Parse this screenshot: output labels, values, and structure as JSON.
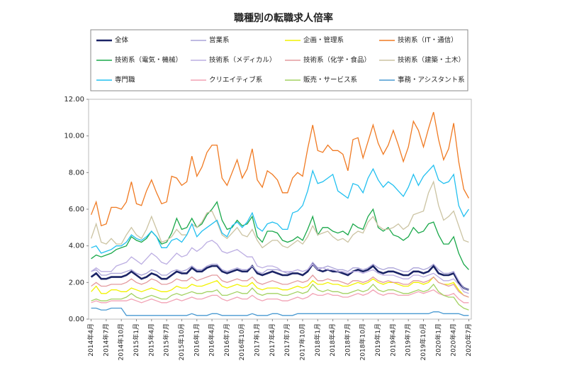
{
  "chart_data": {
    "type": "line",
    "title": "職種別の転職求人倍率",
    "categories": [
      "2014年4月",
      null,
      null,
      "2014年7月",
      null,
      null,
      "2014年10月",
      null,
      null,
      "2015年1月",
      null,
      null,
      "2015年4月",
      null,
      null,
      "2015年7月",
      null,
      null,
      "2015年10月",
      null,
      null,
      "2016年1月",
      null,
      null,
      "2016年4月",
      null,
      null,
      "2016年7月",
      null,
      null,
      "2016年10月",
      null,
      null,
      "2017年1月",
      null,
      null,
      "2017年4月",
      null,
      null,
      "2017年7月",
      null,
      null,
      "2017年10月",
      null,
      null,
      "2018年1月",
      null,
      null,
      "2018年4月",
      null,
      null,
      "2018年7月",
      null,
      null,
      "2018年10月",
      null,
      null,
      "2019年1月",
      null,
      null,
      "2019年4月",
      null,
      null,
      "2019年7月",
      null,
      null,
      "2019年10月",
      null,
      null,
      "2020年1月",
      null,
      null,
      "2020年4月",
      null,
      null,
      "2020年7月"
    ],
    "ylim": [
      0,
      12
    ],
    "yticks": [
      {
        "value": 0,
        "label": "0.00"
      },
      {
        "value": 2,
        "label": "2.00"
      },
      {
        "value": 4,
        "label": "4.00"
      },
      {
        "value": 6,
        "label": "6.00"
      },
      {
        "value": 8,
        "label": "8.00"
      },
      {
        "value": 10,
        "label": "10.00"
      },
      {
        "value": 12,
        "label": "12.00"
      }
    ],
    "series": [
      {
        "name": "全体",
        "color": "#1b2466",
        "values": [
          2.3,
          2.5,
          2.2,
          2.2,
          2.3,
          2.3,
          2.3,
          2.4,
          2.6,
          2.4,
          2.2,
          2.3,
          2.5,
          2.4,
          2.2,
          2.2,
          2.4,
          2.6,
          2.5,
          2.5,
          2.8,
          2.6,
          2.6,
          2.8,
          2.9,
          2.9,
          2.6,
          2.5,
          2.6,
          2.7,
          2.6,
          2.6,
          2.9,
          2.5,
          2.4,
          2.5,
          2.6,
          2.5,
          2.4,
          2.4,
          2.5,
          2.5,
          2.4,
          2.6,
          3.0,
          2.7,
          2.6,
          2.7,
          2.6,
          2.6,
          2.5,
          2.4,
          2.6,
          2.7,
          2.6,
          2.7,
          2.9,
          2.6,
          2.5,
          2.6,
          2.6,
          2.5,
          2.4,
          2.4,
          2.6,
          2.6,
          2.5,
          2.6,
          2.9,
          2.5,
          2.4,
          2.4,
          2.5,
          2.0,
          1.7,
          1.6
        ]
      },
      {
        "name": "営業系",
        "color": "#aaa3d8",
        "values": [
          2.6,
          2.7,
          2.4,
          2.4,
          2.5,
          2.5,
          2.5,
          2.6,
          2.7,
          2.5,
          2.4,
          2.5,
          2.7,
          2.6,
          2.4,
          2.4,
          2.6,
          2.7,
          2.6,
          2.7,
          2.9,
          2.7,
          2.7,
          2.9,
          3.0,
          3.0,
          2.7,
          2.6,
          2.7,
          2.8,
          2.7,
          2.7,
          2.9,
          2.6,
          2.5,
          2.7,
          2.7,
          2.7,
          2.6,
          2.5,
          2.6,
          2.7,
          2.6,
          2.7,
          3.1,
          2.8,
          2.8,
          2.9,
          2.8,
          2.7,
          2.7,
          2.6,
          2.8,
          2.8,
          2.7,
          2.8,
          3.0,
          2.8,
          2.7,
          2.8,
          2.8,
          2.7,
          2.6,
          2.6,
          2.8,
          2.8,
          2.7,
          2.8,
          3.0,
          2.7,
          2.5,
          2.5,
          2.6,
          2.1,
          1.7,
          1.6
        ]
      },
      {
        "name": "企画・管理系",
        "color": "#f2f200",
        "values": [
          1.5,
          1.8,
          1.4,
          1.4,
          1.6,
          1.6,
          1.5,
          1.5,
          1.7,
          1.6,
          1.5,
          1.6,
          1.7,
          1.6,
          1.5,
          1.5,
          1.6,
          1.8,
          1.7,
          1.7,
          1.9,
          1.8,
          1.8,
          1.9,
          2.0,
          2.1,
          1.8,
          1.7,
          1.8,
          1.9,
          1.8,
          1.8,
          2.0,
          1.7,
          1.6,
          1.7,
          1.7,
          1.7,
          1.6,
          1.6,
          1.7,
          1.8,
          1.7,
          1.8,
          2.1,
          1.9,
          1.9,
          2.0,
          1.9,
          1.9,
          1.8,
          1.8,
          1.9,
          2.0,
          1.9,
          2.0,
          2.2,
          2.0,
          1.9,
          2.0,
          2.0,
          1.9,
          1.8,
          1.8,
          2.0,
          2.0,
          1.9,
          2.0,
          2.3,
          2.0,
          1.9,
          1.9,
          2.0,
          1.6,
          1.3,
          1.2
        ]
      },
      {
        "name": "技術系（IT・通信）",
        "color": "#f07a22",
        "values": [
          5.7,
          6.4,
          5.1,
          5.2,
          6.1,
          6.1,
          6.0,
          6.4,
          7.5,
          6.3,
          6.2,
          7.0,
          7.6,
          6.9,
          6.3,
          6.4,
          7.8,
          7.7,
          7.3,
          7.5,
          8.9,
          7.8,
          8.3,
          9.1,
          9.5,
          9.5,
          7.7,
          7.3,
          8.0,
          8.7,
          7.7,
          8.2,
          9.3,
          7.6,
          7.2,
          8.1,
          7.9,
          7.6,
          6.9,
          6.9,
          7.7,
          8.0,
          7.8,
          9.3,
          10.6,
          9.2,
          9.1,
          9.5,
          9.2,
          9.2,
          9.0,
          8.1,
          9.8,
          9.9,
          8.8,
          9.7,
          10.6,
          9.6,
          9.0,
          9.5,
          10.3,
          9.5,
          8.6,
          9.4,
          10.8,
          10.3,
          9.4,
          10.4,
          11.3,
          9.8,
          8.7,
          9.3,
          10.7,
          8.6,
          7.1,
          6.6
        ]
      },
      {
        "name": "技術系（電気・機械）",
        "color": "#1aa84a",
        "values": [
          3.3,
          3.5,
          3.4,
          3.5,
          3.6,
          3.8,
          3.9,
          4.0,
          4.5,
          4.3,
          4.2,
          4.4,
          4.8,
          4.5,
          4.1,
          4.2,
          4.7,
          5.5,
          4.9,
          5.0,
          5.5,
          5.0,
          5.2,
          5.7,
          6.0,
          6.4,
          5.4,
          4.9,
          5.0,
          5.4,
          5.1,
          5.2,
          5.6,
          4.5,
          4.2,
          4.8,
          4.8,
          4.7,
          4.3,
          4.2,
          4.3,
          4.5,
          4.3,
          4.9,
          5.6,
          4.6,
          5.0,
          5.0,
          4.8,
          4.7,
          4.8,
          4.6,
          5.2,
          5.0,
          4.9,
          5.6,
          6.0,
          5.0,
          4.8,
          5.0,
          4.6,
          4.5,
          4.3,
          4.5,
          5.0,
          4.7,
          4.8,
          5.2,
          5.3,
          4.6,
          4.1,
          4.1,
          4.5,
          3.6,
          3.0,
          2.7
        ]
      },
      {
        "name": "技術系（メディカル）",
        "color": "#bcaee2",
        "values": [
          2.6,
          2.8,
          2.6,
          2.6,
          2.6,
          2.9,
          3.0,
          3.1,
          3.4,
          3.2,
          3.0,
          3.3,
          3.6,
          3.4,
          3.1,
          3.0,
          3.3,
          3.6,
          3.4,
          3.5,
          3.9,
          3.7,
          3.9,
          4.2,
          4.3,
          4.1,
          3.7,
          3.6,
          3.7,
          3.8,
          3.6,
          3.4,
          3.4,
          2.9,
          2.8,
          2.9,
          2.9,
          2.8,
          2.6,
          2.6,
          2.6,
          2.7,
          2.6,
          2.7,
          3.0,
          2.7,
          2.8,
          2.7,
          2.7,
          2.6,
          2.6,
          2.5,
          2.6,
          2.6,
          2.5,
          2.6,
          2.7,
          2.5,
          2.4,
          2.4,
          2.4,
          2.3,
          2.2,
          2.2,
          2.4,
          2.4,
          2.3,
          2.4,
          2.5,
          2.3,
          2.1,
          2.1,
          2.2,
          1.9,
          1.5,
          1.4
        ]
      },
      {
        "name": "技術系（化学・食品）",
        "color": "#e39a9e",
        "values": [
          1.8,
          2.0,
          1.8,
          1.8,
          1.9,
          1.9,
          1.9,
          2.0,
          2.2,
          2.0,
          1.9,
          2.0,
          2.2,
          2.1,
          1.9,
          1.9,
          2.0,
          2.2,
          2.1,
          2.1,
          2.3,
          2.1,
          2.2,
          2.3,
          2.4,
          2.4,
          2.1,
          2.0,
          2.1,
          2.2,
          2.1,
          2.1,
          2.3,
          2.0,
          1.9,
          2.0,
          2.1,
          2.0,
          1.9,
          1.9,
          2.0,
          2.1,
          2.0,
          2.1,
          2.4,
          2.1,
          2.1,
          2.2,
          2.1,
          2.1,
          2.0,
          1.9,
          2.1,
          2.1,
          2.0,
          2.1,
          2.3,
          2.1,
          2.0,
          2.1,
          2.0,
          2.0,
          1.9,
          1.9,
          2.1,
          2.1,
          2.0,
          2.1,
          2.3,
          2.0,
          1.9,
          1.8,
          1.9,
          1.5,
          1.3,
          1.2
        ]
      },
      {
        "name": "技術系（建築・土木）",
        "color": "#cbc3a2",
        "values": [
          4.4,
          5.2,
          4.2,
          4.1,
          4.4,
          4.1,
          4.1,
          4.6,
          5.0,
          4.6,
          4.4,
          4.9,
          5.6,
          4.9,
          4.2,
          4.3,
          4.5,
          4.9,
          4.6,
          4.6,
          5.2,
          5.0,
          5.3,
          5.8,
          5.9,
          5.3,
          4.6,
          4.4,
          4.7,
          5.0,
          4.6,
          4.5,
          4.9,
          4.3,
          3.9,
          4.1,
          4.3,
          4.3,
          4.0,
          3.9,
          4.1,
          4.3,
          4.1,
          4.5,
          5.1,
          4.6,
          4.7,
          4.8,
          4.5,
          4.3,
          4.4,
          4.2,
          4.6,
          4.8,
          4.7,
          5.3,
          5.6,
          5.1,
          4.9,
          4.9,
          5.0,
          5.2,
          4.9,
          5.1,
          5.7,
          5.8,
          5.9,
          6.9,
          7.5,
          6.2,
          5.4,
          5.6,
          5.9,
          5.1,
          4.3,
          4.2
        ]
      },
      {
        "name": "専門職",
        "color": "#22c0f0",
        "values": [
          3.9,
          4.0,
          3.6,
          3.7,
          3.8,
          4.0,
          4.0,
          4.2,
          4.6,
          4.4,
          4.3,
          4.5,
          4.8,
          4.5,
          3.9,
          3.9,
          4.3,
          4.4,
          4.2,
          4.6,
          5.2,
          4.5,
          4.8,
          5.0,
          5.2,
          5.4,
          4.7,
          4.5,
          5.1,
          5.3,
          5.0,
          5.3,
          5.8,
          5.0,
          4.8,
          5.2,
          5.3,
          5.2,
          4.9,
          4.9,
          5.8,
          5.9,
          6.2,
          7.0,
          8.1,
          7.4,
          7.5,
          7.7,
          7.9,
          7.0,
          6.8,
          6.6,
          7.4,
          7.3,
          6.9,
          7.7,
          8.2,
          7.6,
          7.2,
          7.5,
          7.3,
          7.0,
          6.7,
          7.2,
          7.9,
          7.3,
          7.8,
          8.1,
          8.4,
          7.6,
          7.4,
          7.5,
          7.9,
          6.2,
          5.6,
          6.0
        ]
      },
      {
        "name": "クリエイティブ系",
        "color": "#f2a2b4",
        "values": [
          0.9,
          1.0,
          0.9,
          0.9,
          1.0,
          1.0,
          1.0,
          1.0,
          1.1,
          1.0,
          0.9,
          1.0,
          1.1,
          1.0,
          0.9,
          0.9,
          1.0,
          1.1,
          1.0,
          1.1,
          1.2,
          1.1,
          1.1,
          1.2,
          1.3,
          1.3,
          1.1,
          1.0,
          1.1,
          1.2,
          1.1,
          1.1,
          1.3,
          1.1,
          1.0,
          1.1,
          1.1,
          1.1,
          1.0,
          1.0,
          1.1,
          1.2,
          1.1,
          1.2,
          1.4,
          1.3,
          1.3,
          1.4,
          1.3,
          1.3,
          1.2,
          1.2,
          1.3,
          1.4,
          1.3,
          1.4,
          1.6,
          1.4,
          1.3,
          1.4,
          1.4,
          1.3,
          1.3,
          1.3,
          1.4,
          1.5,
          1.4,
          1.5,
          1.6,
          1.4,
          1.3,
          1.3,
          1.4,
          1.1,
          0.9,
          0.9
        ]
      },
      {
        "name": "販売・サービス系",
        "color": "#a3d262",
        "values": [
          1.0,
          1.1,
          1.0,
          1.0,
          1.1,
          1.1,
          1.1,
          1.2,
          1.4,
          1.2,
          1.1,
          1.2,
          1.3,
          1.2,
          1.1,
          1.1,
          1.3,
          1.4,
          1.3,
          1.4,
          1.5,
          1.4,
          1.4,
          1.5,
          1.5,
          1.6,
          1.3,
          1.3,
          1.4,
          1.5,
          1.4,
          1.4,
          1.7,
          1.4,
          1.3,
          1.4,
          1.4,
          1.4,
          1.3,
          1.3,
          1.4,
          1.5,
          1.4,
          1.5,
          1.9,
          1.6,
          1.5,
          1.6,
          1.5,
          1.5,
          1.4,
          1.4,
          1.5,
          1.6,
          1.5,
          1.6,
          1.9,
          1.6,
          1.5,
          1.6,
          1.6,
          1.5,
          1.4,
          1.4,
          1.5,
          1.6,
          1.5,
          1.6,
          1.9,
          1.5,
          1.3,
          1.2,
          1.2,
          0.8,
          0.6,
          0.5
        ]
      },
      {
        "name": "事務・アシスタント系",
        "color": "#4a9ad2",
        "values": [
          0.6,
          0.6,
          0.5,
          0.5,
          0.6,
          0.6,
          0.6,
          0.2,
          0.2,
          0.2,
          0.2,
          0.2,
          0.2,
          0.2,
          0.2,
          0.2,
          0.2,
          0.2,
          0.2,
          0.2,
          0.3,
          0.2,
          0.2,
          0.2,
          0.3,
          0.3,
          0.2,
          0.2,
          0.2,
          0.2,
          0.2,
          0.2,
          0.3,
          0.2,
          0.2,
          0.2,
          0.3,
          0.3,
          0.2,
          0.2,
          0.2,
          0.3,
          0.3,
          0.3,
          0.3,
          0.3,
          0.3,
          0.3,
          0.3,
          0.3,
          0.3,
          0.3,
          0.3,
          0.3,
          0.3,
          0.3,
          0.3,
          0.3,
          0.3,
          0.3,
          0.3,
          0.3,
          0.3,
          0.3,
          0.3,
          0.3,
          0.3,
          0.3,
          0.4,
          0.4,
          0.3,
          0.3,
          0.3,
          0.3,
          0.2,
          0.2
        ]
      }
    ]
  }
}
